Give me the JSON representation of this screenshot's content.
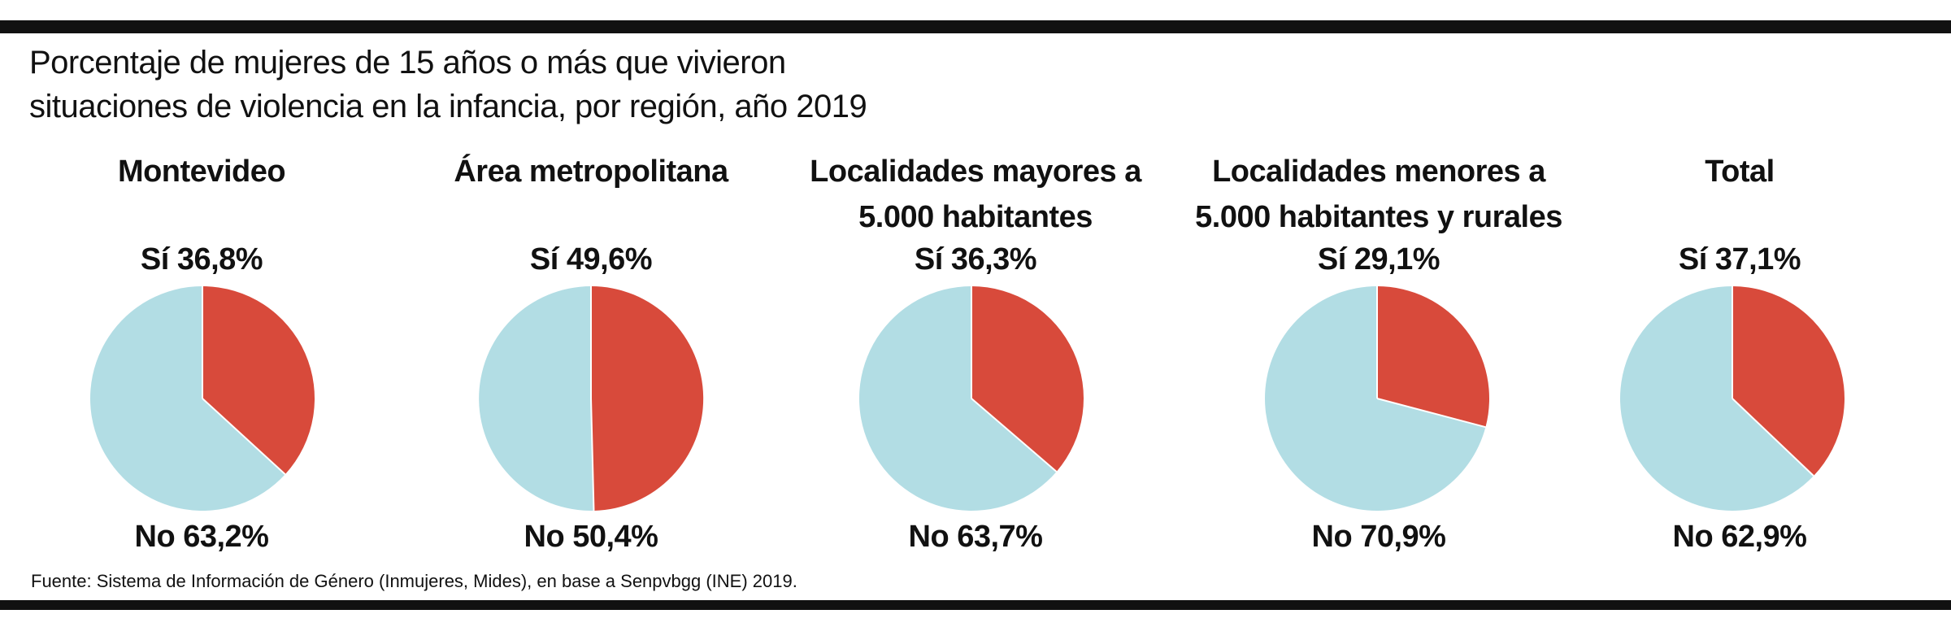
{
  "title_line1": "Porcentaje de mujeres de 15 años o más que vivieron",
  "title_line2": "situaciones de violencia en la infancia, por región, año 2019",
  "source": "Fuente: Sistema de Información de Género (Inmujeres, Mides), en base a Senpvbgg (INE) 2019.",
  "colors": {
    "si": "#d84a3b",
    "no": "#b2dde4"
  },
  "chart_data": [
    {
      "type": "pie",
      "title": "Montevideo",
      "slices": [
        {
          "label": "Sí 36,8%",
          "value": 36.8
        },
        {
          "label": "No 63,2%",
          "value": 63.2
        }
      ]
    },
    {
      "type": "pie",
      "title": "Área metropolitana",
      "slices": [
        {
          "label": "Sí 49,6%",
          "value": 49.6
        },
        {
          "label": "No 50,4%",
          "value": 50.4
        }
      ]
    },
    {
      "type": "pie",
      "title": "Localidades mayores a 5.000 habitantes",
      "slices": [
        {
          "label": "Sí 36,3%",
          "value": 36.3
        },
        {
          "label": "No 63,7%",
          "value": 63.7
        }
      ]
    },
    {
      "type": "pie",
      "title": "Localidades menores a 5.000 habitantes y rurales",
      "slices": [
        {
          "label": "Sí 29,1%",
          "value": 29.1
        },
        {
          "label": "No 70,9%",
          "value": 70.9
        }
      ]
    },
    {
      "type": "pie",
      "title": "Total",
      "slices": [
        {
          "label": "Sí 37,1%",
          "value": 37.1
        },
        {
          "label": "No 62,9%",
          "value": 62.9
        }
      ]
    }
  ]
}
